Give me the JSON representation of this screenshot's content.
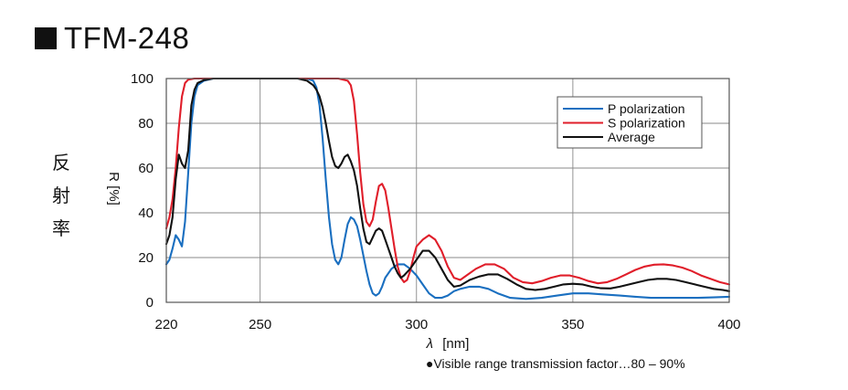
{
  "title": "TFM-248",
  "side_label_chars": [
    "反",
    "射",
    "率"
  ],
  "footnote": "●Visible range transmission factor…80 – 90%",
  "chart_data": {
    "type": "line",
    "xlabel_symbol": "λ",
    "xlabel_unit": "[nm]",
    "ylabel": "R [%]",
    "xlim": [
      220,
      400
    ],
    "ylim": [
      0,
      100
    ],
    "x_ticks": [
      220,
      250,
      300,
      350,
      400
    ],
    "x_gridlines": [
      250,
      300,
      350
    ],
    "y_ticks": [
      0,
      20,
      40,
      60,
      80,
      100
    ],
    "grid": true,
    "legend_position": "top-right",
    "series": [
      {
        "name": "P polarization",
        "color": "#1a6fc0",
        "points": [
          [
            220,
            17
          ],
          [
            221,
            19
          ],
          [
            222,
            24
          ],
          [
            223,
            30
          ],
          [
            224,
            28
          ],
          [
            225,
            25
          ],
          [
            226,
            36
          ],
          [
            227,
            58
          ],
          [
            228,
            80
          ],
          [
            229,
            92
          ],
          [
            230,
            97
          ],
          [
            232,
            99
          ],
          [
            235,
            100
          ],
          [
            250,
            100
          ],
          [
            265,
            100
          ],
          [
            267,
            99
          ],
          [
            268,
            96
          ],
          [
            269,
            88
          ],
          [
            270,
            73
          ],
          [
            271,
            55
          ],
          [
            272,
            38
          ],
          [
            273,
            26
          ],
          [
            274,
            19
          ],
          [
            275,
            17
          ],
          [
            276,
            20
          ],
          [
            277,
            28
          ],
          [
            278,
            35
          ],
          [
            279,
            38
          ],
          [
            280,
            37
          ],
          [
            281,
            34
          ],
          [
            282,
            28
          ],
          [
            283,
            21
          ],
          [
            284,
            14
          ],
          [
            285,
            8
          ],
          [
            286,
            4
          ],
          [
            287,
            3
          ],
          [
            288,
            4
          ],
          [
            289,
            7
          ],
          [
            290,
            11
          ],
          [
            292,
            15
          ],
          [
            294,
            17
          ],
          [
            296,
            17
          ],
          [
            298,
            15
          ],
          [
            300,
            12
          ],
          [
            302,
            8
          ],
          [
            304,
            4
          ],
          [
            306,
            2
          ],
          [
            308,
            2
          ],
          [
            310,
            3
          ],
          [
            312,
            5
          ],
          [
            314,
            6
          ],
          [
            317,
            7
          ],
          [
            320,
            7
          ],
          [
            323,
            6
          ],
          [
            326,
            4
          ],
          [
            330,
            2
          ],
          [
            335,
            1.5
          ],
          [
            340,
            2
          ],
          [
            345,
            3
          ],
          [
            350,
            4
          ],
          [
            355,
            4
          ],
          [
            360,
            3.5
          ],
          [
            365,
            3
          ],
          [
            370,
            2.5
          ],
          [
            375,
            2
          ],
          [
            380,
            2
          ],
          [
            385,
            2
          ],
          [
            390,
            2
          ],
          [
            395,
            2.2
          ],
          [
            400,
            2.5
          ]
        ]
      },
      {
        "name": "S polarization",
        "color": "#e01e2a",
        "points": [
          [
            220,
            33
          ],
          [
            221,
            38
          ],
          [
            222,
            46
          ],
          [
            223,
            60
          ],
          [
            224,
            78
          ],
          [
            225,
            92
          ],
          [
            226,
            98
          ],
          [
            227,
            99.5
          ],
          [
            229,
            100
          ],
          [
            260,
            100
          ],
          [
            275,
            100
          ],
          [
            278,
            99
          ],
          [
            279,
            97
          ],
          [
            280,
            90
          ],
          [
            281,
            75
          ],
          [
            282,
            58
          ],
          [
            283,
            44
          ],
          [
            284,
            36
          ],
          [
            285,
            34
          ],
          [
            286,
            37
          ],
          [
            287,
            45
          ],
          [
            288,
            52
          ],
          [
            289,
            53
          ],
          [
            290,
            50
          ],
          [
            291,
            42
          ],
          [
            292,
            33
          ],
          [
            293,
            24
          ],
          [
            294,
            16
          ],
          [
            295,
            11
          ],
          [
            296,
            9
          ],
          [
            297,
            10
          ],
          [
            298,
            14
          ],
          [
            299,
            20
          ],
          [
            300,
            25
          ],
          [
            302,
            28
          ],
          [
            304,
            30
          ],
          [
            306,
            28
          ],
          [
            308,
            23
          ],
          [
            310,
            16
          ],
          [
            312,
            11
          ],
          [
            314,
            10
          ],
          [
            316,
            12
          ],
          [
            319,
            15
          ],
          [
            322,
            17
          ],
          [
            325,
            17
          ],
          [
            328,
            15
          ],
          [
            331,
            11
          ],
          [
            334,
            9
          ],
          [
            337,
            8.5
          ],
          [
            340,
            9.5
          ],
          [
            343,
            11
          ],
          [
            346,
            12
          ],
          [
            349,
            12
          ],
          [
            352,
            11
          ],
          [
            355,
            9.5
          ],
          [
            358,
            8.5
          ],
          [
            361,
            9
          ],
          [
            364,
            10.5
          ],
          [
            367,
            12.5
          ],
          [
            370,
            14.5
          ],
          [
            373,
            16
          ],
          [
            376,
            16.8
          ],
          [
            379,
            17
          ],
          [
            382,
            16.5
          ],
          [
            385,
            15.5
          ],
          [
            388,
            14
          ],
          [
            391,
            12
          ],
          [
            394,
            10.5
          ],
          [
            397,
            9
          ],
          [
            400,
            8
          ]
        ]
      },
      {
        "name": "Average",
        "color": "#111111",
        "points": [
          [
            220,
            26
          ],
          [
            221,
            30
          ],
          [
            222,
            38
          ],
          [
            223,
            55
          ],
          [
            224,
            66
          ],
          [
            225,
            62
          ],
          [
            226,
            60
          ],
          [
            227,
            68
          ],
          [
            228,
            88
          ],
          [
            229,
            95
          ],
          [
            230,
            98
          ],
          [
            232,
            99.3
          ],
          [
            235,
            100
          ],
          [
            262,
            100
          ],
          [
            265,
            99
          ],
          [
            266,
            98
          ],
          [
            267,
            97
          ],
          [
            268,
            95
          ],
          [
            269,
            92
          ],
          [
            270,
            87
          ],
          [
            271,
            80
          ],
          [
            272,
            72
          ],
          [
            273,
            65
          ],
          [
            274,
            61
          ],
          [
            275,
            60
          ],
          [
            276,
            62
          ],
          [
            277,
            65
          ],
          [
            278,
            66
          ],
          [
            279,
            63
          ],
          [
            280,
            59
          ],
          [
            281,
            52
          ],
          [
            282,
            42
          ],
          [
            283,
            33
          ],
          [
            284,
            27
          ],
          [
            285,
            26
          ],
          [
            286,
            29
          ],
          [
            287,
            32
          ],
          [
            288,
            33
          ],
          [
            289,
            32
          ],
          [
            290,
            28
          ],
          [
            291,
            24
          ],
          [
            292,
            20
          ],
          [
            293,
            16
          ],
          [
            294,
            13
          ],
          [
            295,
            11
          ],
          [
            296,
            12
          ],
          [
            298,
            15
          ],
          [
            300,
            19
          ],
          [
            302,
            23
          ],
          [
            304,
            23
          ],
          [
            306,
            20
          ],
          [
            308,
            15
          ],
          [
            310,
            10
          ],
          [
            312,
            7
          ],
          [
            314,
            7.5
          ],
          [
            317,
            10
          ],
          [
            320,
            11.5
          ],
          [
            323,
            12.5
          ],
          [
            326,
            12.5
          ],
          [
            329,
            10.5
          ],
          [
            332,
            8
          ],
          [
            335,
            6
          ],
          [
            338,
            5.5
          ],
          [
            341,
            6
          ],
          [
            344,
            7
          ],
          [
            347,
            8
          ],
          [
            350,
            8.3
          ],
          [
            353,
            8
          ],
          [
            356,
            7
          ],
          [
            359,
            6.3
          ],
          [
            362,
            6.2
          ],
          [
            365,
            7
          ],
          [
            368,
            8
          ],
          [
            371,
            9
          ],
          [
            374,
            10
          ],
          [
            377,
            10.5
          ],
          [
            380,
            10.5
          ],
          [
            383,
            10
          ],
          [
            386,
            9
          ],
          [
            389,
            8
          ],
          [
            392,
            7
          ],
          [
            395,
            6
          ],
          [
            398,
            5.5
          ],
          [
            400,
            5
          ]
        ]
      }
    ]
  }
}
